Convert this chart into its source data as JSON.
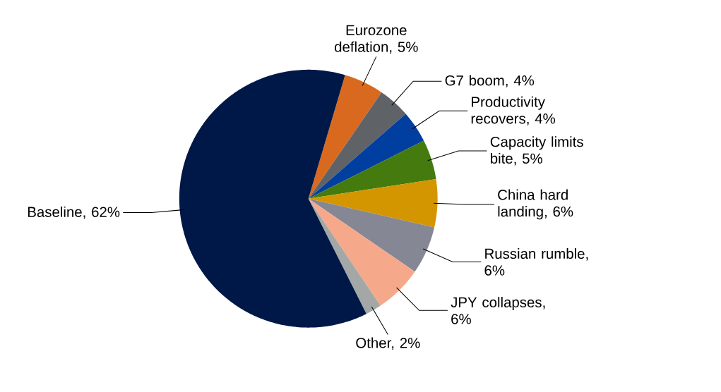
{
  "chart_data": {
    "type": "pie",
    "categories": [
      "Eurozone deflation, 5%",
      "G7 boom, 4%",
      "Productivity recovers, 4%",
      "Capacity limits bite, 5%",
      "China hard landing, 6%",
      "Russian rumble, 6%",
      "JPY collapses, 6%",
      "Other, 2%",
      "Baseline, 62%"
    ],
    "values": [
      5,
      4,
      4,
      5,
      6,
      6,
      6,
      2,
      62
    ],
    "colors": [
      "#d9691e",
      "#5f6368",
      "#003f9f",
      "#447a0e",
      "#d39600",
      "#858794",
      "#f5a98a",
      "#a3a7a6",
      "#001847"
    ]
  }
}
